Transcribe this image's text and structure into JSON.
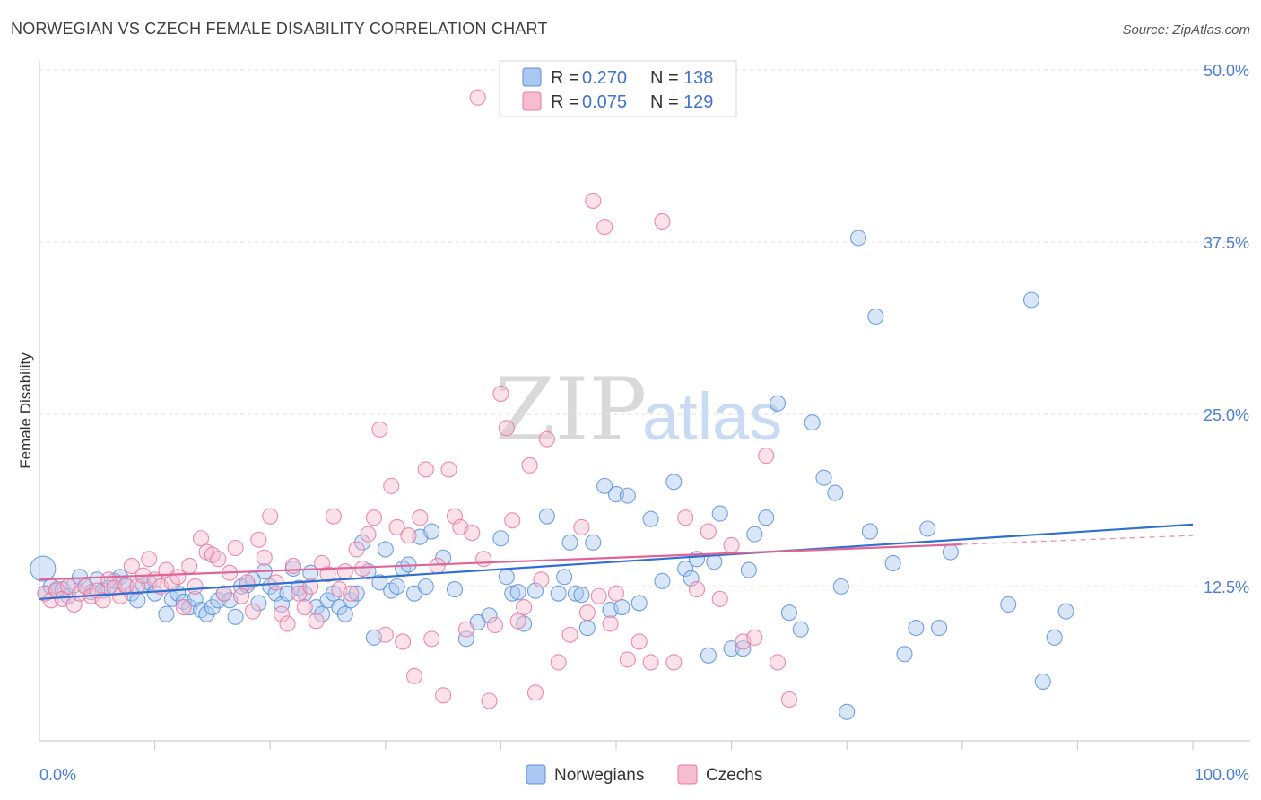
{
  "header": {
    "title": "NORWEGIAN VS CZECH FEMALE DISABILITY CORRELATION CHART",
    "source": "Source: ZipAtlas.com"
  },
  "watermark": {
    "zip": "ZIP",
    "atlas": "atlas"
  },
  "chart_data": {
    "type": "scatter",
    "title": "NORWEGIAN VS CZECH FEMALE DISABILITY CORRELATION CHART",
    "xlabel": "",
    "ylabel": "Female Disability",
    "xlim": [
      0,
      100
    ],
    "ylim": [
      2.5,
      52.5
    ],
    "x_tick_labels": [
      "0.0%",
      "100.0%"
    ],
    "y_ticks": [
      12.5,
      25.0,
      37.5,
      50.0
    ],
    "y_tick_labels": [
      "12.5%",
      "25.0%",
      "37.5%",
      "50.0%"
    ],
    "grid": true,
    "legend": {
      "position": "top-center",
      "rows": [
        {
          "r_label": "R = ",
          "r_value": "0.270",
          "n_label": "N = ",
          "n_value": "138"
        },
        {
          "r_label": "R = ",
          "r_value": "0.075",
          "n_label": "N = ",
          "n_value": "129"
        }
      ]
    },
    "bottom_legend": [
      "Norwegians",
      "Czechs"
    ],
    "series": [
      {
        "name": "Norwegians",
        "color": "#5b8fdc",
        "fill": "#a9c7f0",
        "trend": {
          "x": [
            0,
            100
          ],
          "y": [
            11.6,
            17.0
          ],
          "dashed_from": null
        },
        "points": [
          [
            0.3,
            13.8
          ],
          [
            0.5,
            12.0
          ],
          [
            1,
            12.5
          ],
          [
            1.5,
            12.2
          ],
          [
            2,
            12.3
          ],
          [
            2.5,
            11.8
          ],
          [
            3,
            12.6
          ],
          [
            3.5,
            13.2
          ],
          [
            4,
            12.5
          ],
          [
            4.5,
            12.1
          ],
          [
            5,
            13.0
          ],
          [
            5.5,
            12.2
          ],
          [
            6,
            12.4
          ],
          [
            6.5,
            12.9
          ],
          [
            7,
            13.2
          ],
          [
            7.5,
            12.5
          ],
          [
            8,
            12.0
          ],
          [
            8.5,
            11.5
          ],
          [
            9,
            12.6
          ],
          [
            9.5,
            12.8
          ],
          [
            10,
            12.0
          ],
          [
            11,
            10.5
          ],
          [
            11.5,
            11.6
          ],
          [
            12,
            12.0
          ],
          [
            12.5,
            11.4
          ],
          [
            13,
            11.0
          ],
          [
            13.5,
            11.6
          ],
          [
            14,
            10.8
          ],
          [
            14.5,
            10.5
          ],
          [
            15,
            11.0
          ],
          [
            15.5,
            11.5
          ],
          [
            16,
            12.0
          ],
          [
            16.5,
            11.5
          ],
          [
            17,
            10.3
          ],
          [
            17.5,
            12.5
          ],
          [
            18,
            12.6
          ],
          [
            18.5,
            13.0
          ],
          [
            19,
            11.3
          ],
          [
            19.5,
            13.6
          ],
          [
            20,
            12.5
          ],
          [
            20.5,
            12.0
          ],
          [
            21,
            11.2
          ],
          [
            21.5,
            12.0
          ],
          [
            22,
            13.8
          ],
          [
            22.5,
            12.4
          ],
          [
            23,
            12.0
          ],
          [
            23.5,
            13.5
          ],
          [
            24,
            11.0
          ],
          [
            24.5,
            10.5
          ],
          [
            25,
            11.5
          ],
          [
            25.5,
            12.0
          ],
          [
            26,
            11.0
          ],
          [
            26.5,
            10.5
          ],
          [
            27,
            11.5
          ],
          [
            27.5,
            12.0
          ],
          [
            28,
            15.7
          ],
          [
            28.5,
            13.6
          ],
          [
            29,
            8.8
          ],
          [
            29.5,
            12.8
          ],
          [
            30,
            15.2
          ],
          [
            30.5,
            12.2
          ],
          [
            31,
            12.5
          ],
          [
            31.5,
            13.8
          ],
          [
            32,
            14.1
          ],
          [
            32.5,
            12.0
          ],
          [
            33,
            16.1
          ],
          [
            33.5,
            12.5
          ],
          [
            34,
            16.5
          ],
          [
            35,
            14.6
          ],
          [
            36,
            12.3
          ],
          [
            37,
            8.7
          ],
          [
            38,
            9.9
          ],
          [
            39,
            10.4
          ],
          [
            40,
            16.0
          ],
          [
            40.5,
            13.2
          ],
          [
            41,
            12.0
          ],
          [
            41.5,
            12.1
          ],
          [
            42,
            9.8
          ],
          [
            43,
            12.2
          ],
          [
            44,
            17.6
          ],
          [
            45,
            12.0
          ],
          [
            45.5,
            13.2
          ],
          [
            46,
            15.7
          ],
          [
            46.5,
            12.0
          ],
          [
            47,
            11.9
          ],
          [
            47.5,
            9.5
          ],
          [
            48,
            15.7
          ],
          [
            49,
            19.8
          ],
          [
            49.5,
            10.8
          ],
          [
            50,
            19.2
          ],
          [
            50.5,
            11.0
          ],
          [
            51,
            19.1
          ],
          [
            52,
            11.3
          ],
          [
            53,
            17.4
          ],
          [
            54,
            12.9
          ],
          [
            55,
            20.1
          ],
          [
            56,
            13.8
          ],
          [
            56.5,
            13.1
          ],
          [
            57,
            14.5
          ],
          [
            58,
            7.5
          ],
          [
            58.5,
            14.3
          ],
          [
            59,
            17.8
          ],
          [
            60,
            8.0
          ],
          [
            61,
            8.0
          ],
          [
            61.5,
            13.7
          ],
          [
            62,
            16.3
          ],
          [
            63,
            17.5
          ],
          [
            64,
            25.8
          ],
          [
            65,
            10.6
          ],
          [
            66,
            9.4
          ],
          [
            67,
            24.4
          ],
          [
            68,
            20.4
          ],
          [
            69,
            19.3
          ],
          [
            69.5,
            12.5
          ],
          [
            70,
            3.4
          ],
          [
            71,
            37.8
          ],
          [
            72,
            16.5
          ],
          [
            72.5,
            32.1
          ],
          [
            74,
            14.2
          ],
          [
            75,
            7.6
          ],
          [
            76,
            9.5
          ],
          [
            77,
            16.7
          ],
          [
            78,
            9.5
          ],
          [
            79,
            15.0
          ],
          [
            84,
            11.2
          ],
          [
            86,
            33.3
          ],
          [
            87,
            5.6
          ],
          [
            88,
            8.8
          ],
          [
            89,
            10.7
          ]
        ]
      },
      {
        "name": "Czechs",
        "color": "#e8789f",
        "fill": "#f6bcd0",
        "trend": {
          "x": [
            0,
            100
          ],
          "y": [
            13.0,
            16.2
          ],
          "dashed_from": 80
        },
        "points": [
          [
            0.5,
            12.0
          ],
          [
            1,
            11.5
          ],
          [
            1.5,
            12.3
          ],
          [
            2,
            11.6
          ],
          [
            2.5,
            12.5
          ],
          [
            3,
            11.2
          ],
          [
            3.5,
            12.0
          ],
          [
            4,
            12.5
          ],
          [
            4.5,
            11.8
          ],
          [
            5,
            12.2
          ],
          [
            5.5,
            11.5
          ],
          [
            6,
            13.0
          ],
          [
            6.5,
            12.4
          ],
          [
            7,
            11.8
          ],
          [
            7.5,
            12.6
          ],
          [
            8,
            14.0
          ],
          [
            8.5,
            12.5
          ],
          [
            9,
            13.3
          ],
          [
            9.5,
            14.5
          ],
          [
            10,
            13.0
          ],
          [
            10.5,
            12.5
          ],
          [
            11,
            13.7
          ],
          [
            11.5,
            12.8
          ],
          [
            12,
            13.2
          ],
          [
            12.5,
            11.0
          ],
          [
            13,
            14.0
          ],
          [
            13.5,
            12.5
          ],
          [
            14,
            16.0
          ],
          [
            14.5,
            15.0
          ],
          [
            15,
            14.8
          ],
          [
            15.5,
            14.5
          ],
          [
            16,
            12.0
          ],
          [
            16.5,
            13.5
          ],
          [
            17,
            15.3
          ],
          [
            17.5,
            11.8
          ],
          [
            18,
            12.8
          ],
          [
            18.5,
            10.7
          ],
          [
            19,
            15.9
          ],
          [
            19.5,
            14.6
          ],
          [
            20,
            17.6
          ],
          [
            20.5,
            12.8
          ],
          [
            21,
            10.5
          ],
          [
            21.5,
            9.8
          ],
          [
            22,
            14.0
          ],
          [
            22.5,
            12.0
          ],
          [
            23,
            11.0
          ],
          [
            23.5,
            12.5
          ],
          [
            24,
            10.0
          ],
          [
            24.5,
            14.2
          ],
          [
            25,
            13.4
          ],
          [
            25.5,
            17.6
          ],
          [
            26,
            12.3
          ],
          [
            26.5,
            13.6
          ],
          [
            27,
            12.0
          ],
          [
            27.5,
            15.2
          ],
          [
            28,
            13.8
          ],
          [
            28.5,
            16.3
          ],
          [
            29,
            17.5
          ],
          [
            29.5,
            23.9
          ],
          [
            30,
            9.0
          ],
          [
            30.5,
            19.8
          ],
          [
            31,
            16.8
          ],
          [
            31.5,
            8.5
          ],
          [
            32,
            16.2
          ],
          [
            32.5,
            6.0
          ],
          [
            33,
            17.5
          ],
          [
            33.5,
            21.0
          ],
          [
            34,
            8.7
          ],
          [
            34.5,
            14.0
          ],
          [
            35,
            4.6
          ],
          [
            35.5,
            21.0
          ],
          [
            36,
            17.6
          ],
          [
            36.5,
            16.8
          ],
          [
            37,
            9.4
          ],
          [
            37.5,
            16.4
          ],
          [
            38,
            48.0
          ],
          [
            38.5,
            14.5
          ],
          [
            39,
            4.2
          ],
          [
            39.5,
            9.7
          ],
          [
            40,
            26.5
          ],
          [
            40.5,
            24.0
          ],
          [
            41,
            17.3
          ],
          [
            41.5,
            10.0
          ],
          [
            42,
            11.0
          ],
          [
            42.5,
            21.3
          ],
          [
            43,
            4.8
          ],
          [
            43.5,
            13.0
          ],
          [
            44,
            23.2
          ],
          [
            45,
            7.0
          ],
          [
            46,
            9.0
          ],
          [
            47,
            16.8
          ],
          [
            47.5,
            10.6
          ],
          [
            48,
            40.5
          ],
          [
            48.5,
            11.8
          ],
          [
            49,
            38.6
          ],
          [
            49.5,
            9.8
          ],
          [
            50,
            12.0
          ],
          [
            51,
            7.2
          ],
          [
            52,
            8.5
          ],
          [
            53,
            7.0
          ],
          [
            54,
            39.0
          ],
          [
            55,
            7.0
          ],
          [
            56,
            17.5
          ],
          [
            57,
            12.3
          ],
          [
            58,
            16.5
          ],
          [
            59,
            11.6
          ],
          [
            60,
            15.5
          ],
          [
            61,
            8.5
          ],
          [
            62,
            8.8
          ],
          [
            63,
            22.0
          ],
          [
            64,
            7.0
          ],
          [
            65,
            4.3
          ]
        ]
      }
    ]
  }
}
